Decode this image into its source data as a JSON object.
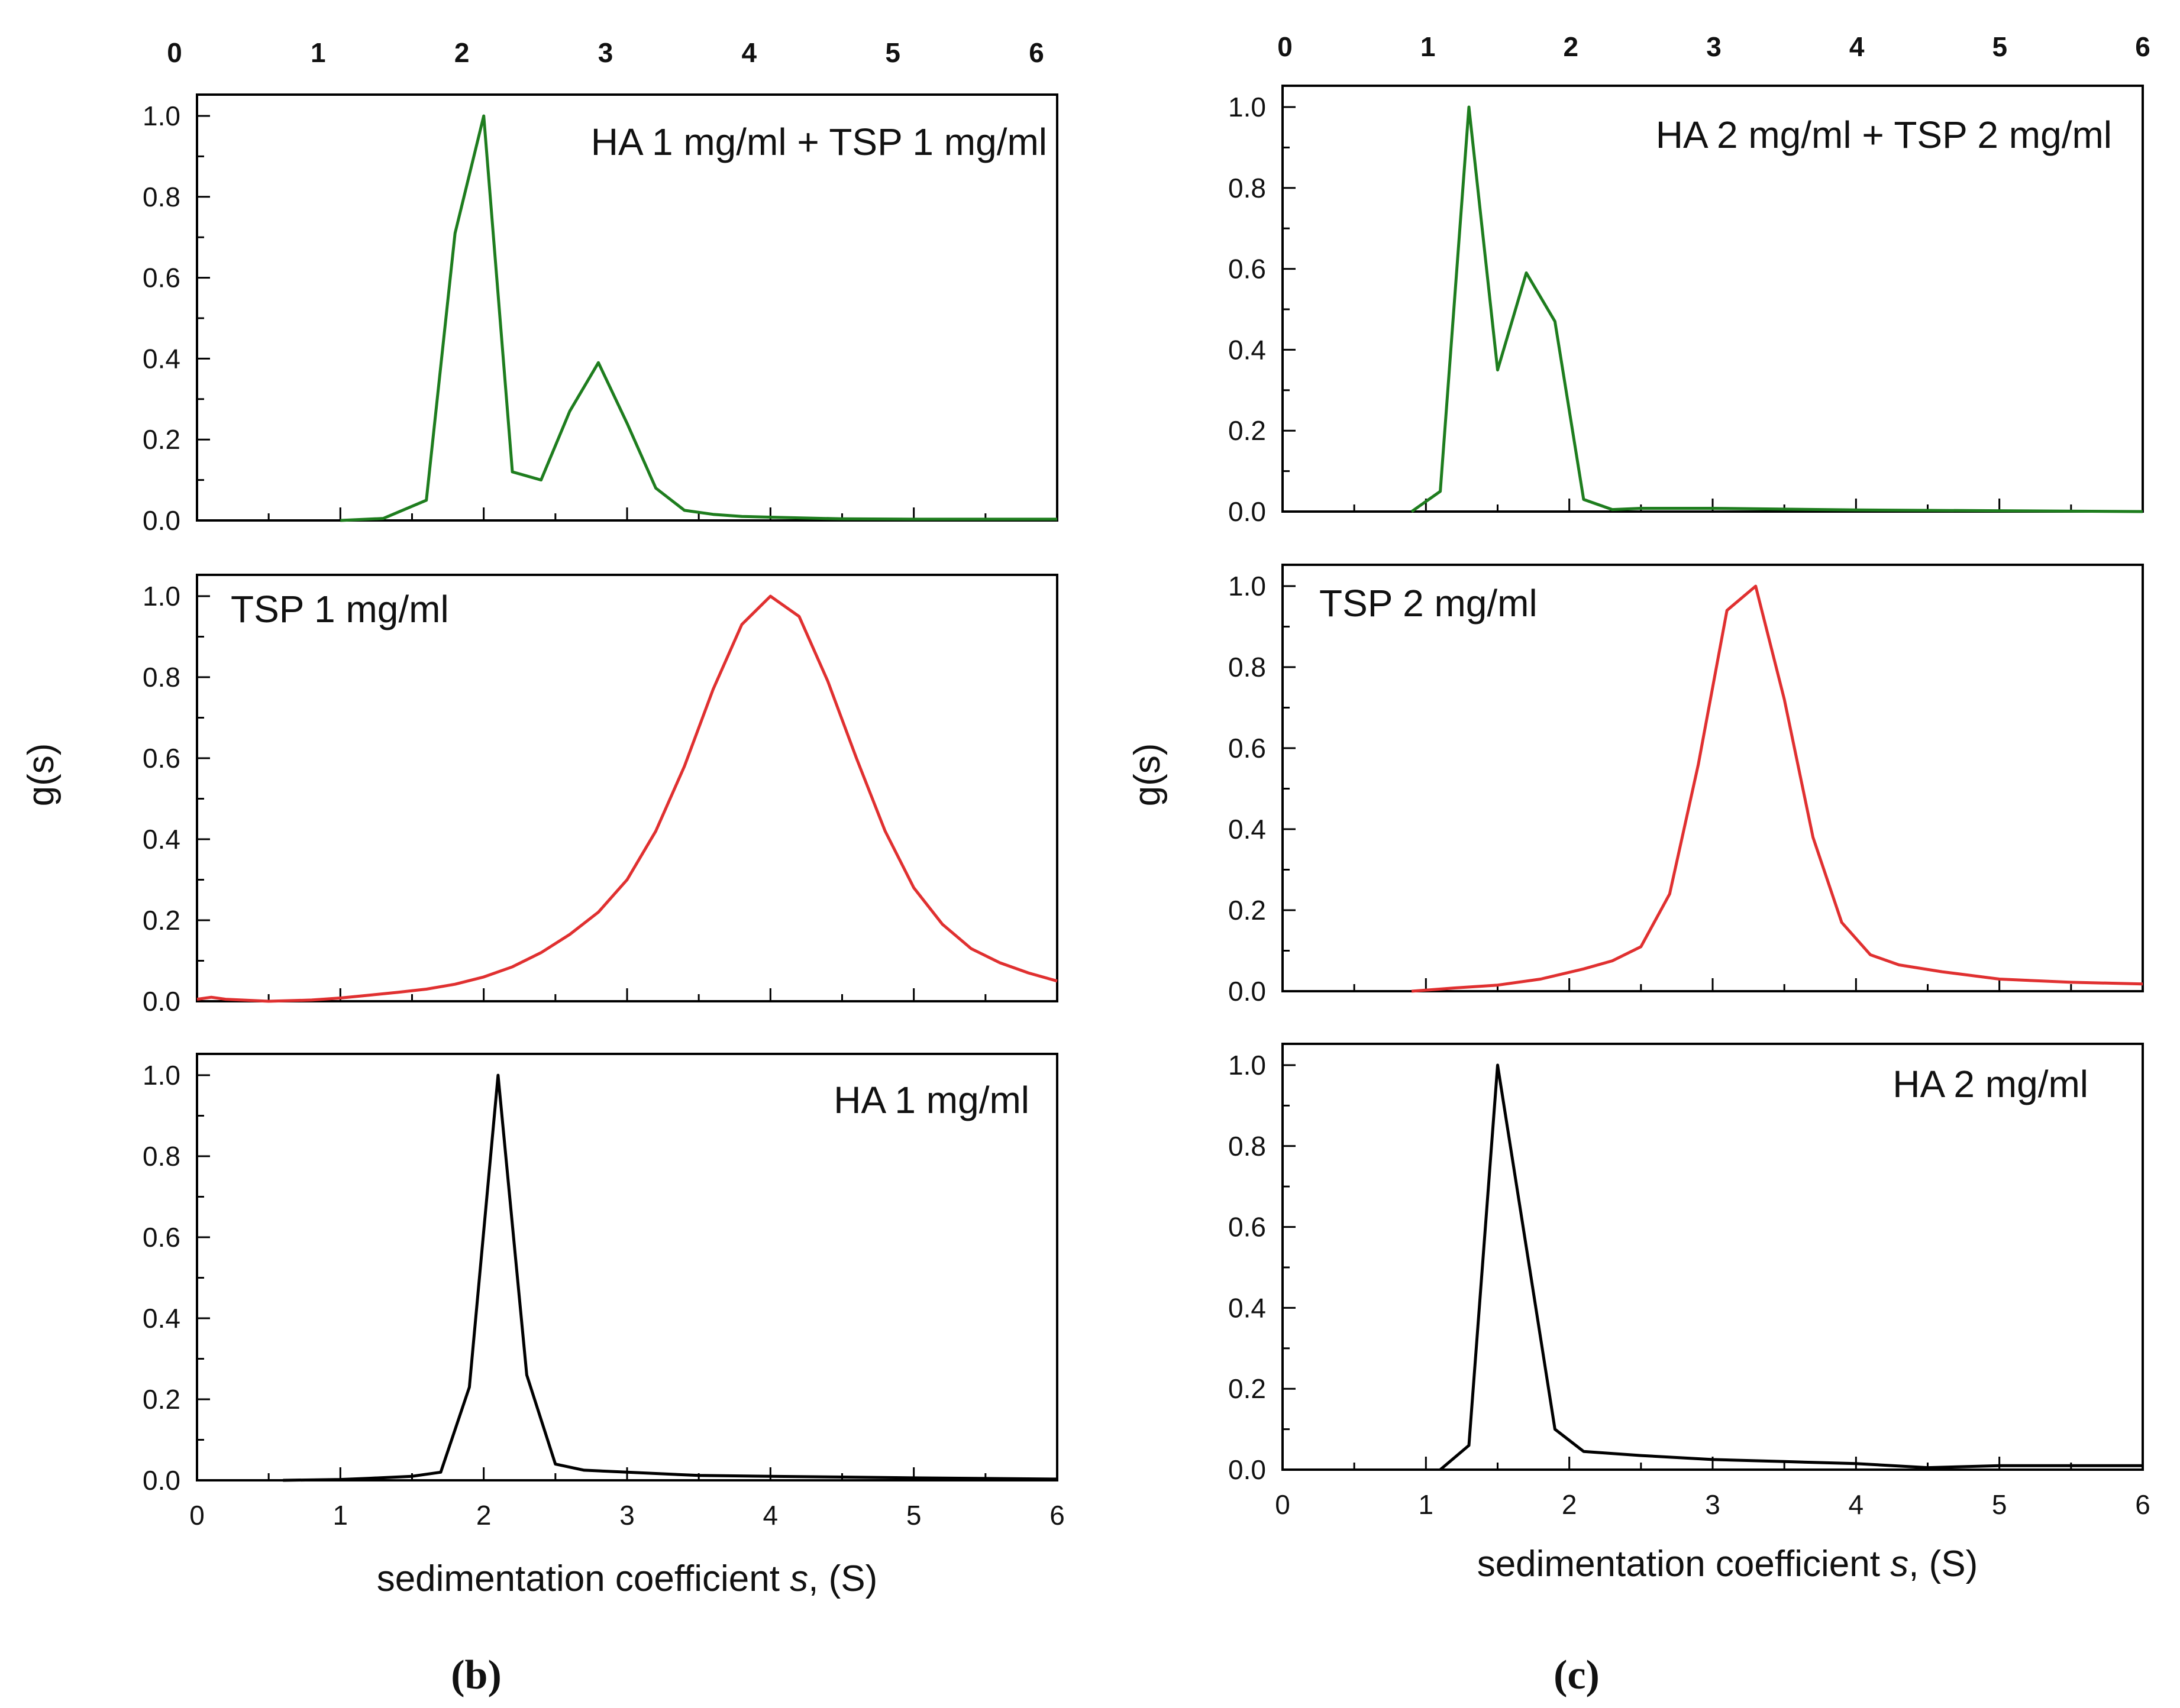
{
  "figure": {
    "panel_b_label": "(b)",
    "panel_c_label": "(c)",
    "xlabel_prefix": "sedimentation coefficient ",
    "xlabel_var": "s",
    "xlabel_suffix": ", (S)",
    "ylabel": "g(s)"
  },
  "chart_data": [
    {
      "type": "line",
      "panel": "b",
      "row": 0,
      "annotation": "HA 1 mg/ml + TSP 1 mg/ml",
      "color": "#1e7d1e",
      "xlim": [
        0,
        6
      ],
      "ylim": [
        0,
        1.0
      ],
      "x": [
        1.0,
        1.3,
        1.6,
        1.8,
        2.0,
        2.2,
        2.4,
        2.6,
        2.8,
        3.0,
        3.2,
        3.4,
        3.6,
        3.8,
        4.0,
        4.5,
        5.0,
        6.0
      ],
      "y": [
        0.0,
        0.005,
        0.05,
        0.71,
        1.0,
        0.12,
        0.1,
        0.27,
        0.39,
        0.24,
        0.08,
        0.025,
        0.015,
        0.01,
        0.008,
        0.004,
        0.003,
        0.003
      ]
    },
    {
      "type": "line",
      "panel": "b",
      "row": 1,
      "annotation": "TSP 1 mg/ml",
      "color": "#e03030",
      "xlim": [
        0,
        6
      ],
      "ylim": [
        0,
        1.0
      ],
      "x": [
        0.0,
        0.1,
        0.2,
        0.5,
        0.8,
        1.0,
        1.2,
        1.4,
        1.6,
        1.8,
        2.0,
        2.2,
        2.4,
        2.6,
        2.8,
        3.0,
        3.2,
        3.4,
        3.6,
        3.8,
        4.0,
        4.2,
        4.4,
        4.6,
        4.8,
        5.0,
        5.2,
        5.4,
        5.6,
        5.8,
        6.0
      ],
      "y": [
        0.005,
        0.01,
        0.005,
        0.0,
        0.003,
        0.008,
        0.015,
        0.022,
        0.03,
        0.042,
        0.06,
        0.085,
        0.12,
        0.165,
        0.22,
        0.3,
        0.42,
        0.58,
        0.77,
        0.93,
        1.0,
        0.95,
        0.79,
        0.6,
        0.42,
        0.28,
        0.19,
        0.13,
        0.095,
        0.07,
        0.05
      ]
    },
    {
      "type": "line",
      "panel": "b",
      "row": 2,
      "annotation": "HA 1 mg/ml",
      "color": "#000000",
      "xlim": [
        0,
        6
      ],
      "ylim": [
        0,
        1.0
      ],
      "x": [
        0.6,
        1.0,
        1.2,
        1.5,
        1.7,
        1.9,
        2.1,
        2.3,
        2.5,
        2.7,
        3.0,
        3.5,
        4.0,
        4.5,
        5.0,
        6.0
      ],
      "y": [
        0.0,
        0.002,
        0.005,
        0.01,
        0.02,
        0.23,
        1.0,
        0.26,
        0.04,
        0.025,
        0.02,
        0.012,
        0.01,
        0.008,
        0.006,
        0.003
      ]
    },
    {
      "type": "line",
      "panel": "c",
      "row": 0,
      "annotation": "HA 2 mg/ml + TSP 2 mg/ml",
      "color": "#1e7d1e",
      "xlim": [
        0,
        6
      ],
      "ylim": [
        0,
        1.0
      ],
      "x": [
        0.9,
        1.1,
        1.3,
        1.5,
        1.7,
        1.9,
        2.1,
        2.3,
        2.5,
        3.0,
        3.5,
        4.0,
        5.0,
        6.0
      ],
      "y": [
        0.0,
        0.05,
        1.0,
        0.35,
        0.59,
        0.47,
        0.03,
        0.005,
        0.008,
        0.008,
        0.006,
        0.004,
        0.002,
        0.0
      ]
    },
    {
      "type": "line",
      "panel": "c",
      "row": 1,
      "annotation": "TSP 2 mg/ml",
      "color": "#e03030",
      "xlim": [
        0,
        6
      ],
      "ylim": [
        0,
        1.0
      ],
      "x": [
        0.9,
        1.2,
        1.5,
        1.8,
        2.1,
        2.3,
        2.5,
        2.7,
        2.9,
        3.1,
        3.3,
        3.5,
        3.7,
        3.9,
        4.1,
        4.3,
        4.6,
        5.0,
        5.5,
        6.0
      ],
      "y": [
        0.0,
        0.008,
        0.015,
        0.03,
        0.055,
        0.075,
        0.11,
        0.24,
        0.56,
        0.94,
        1.0,
        0.72,
        0.38,
        0.17,
        0.09,
        0.065,
        0.048,
        0.03,
        0.022,
        0.018
      ]
    },
    {
      "type": "line",
      "panel": "c",
      "row": 2,
      "annotation": "HA 2 mg/ml",
      "color": "#000000",
      "xlim": [
        0,
        6
      ],
      "ylim": [
        0,
        1.0
      ],
      "x": [
        1.1,
        1.3,
        1.5,
        1.7,
        1.9,
        2.1,
        2.5,
        3.0,
        3.5,
        4.0,
        4.5,
        5.0,
        6.0
      ],
      "y": [
        0.0,
        0.06,
        1.0,
        0.55,
        0.1,
        0.045,
        0.035,
        0.025,
        0.02,
        0.015,
        0.005,
        0.01,
        0.01
      ]
    }
  ],
  "axes": {
    "y_ticks": [
      "0.0",
      "0.2",
      "0.4",
      "0.6",
      "0.8",
      "1.0"
    ],
    "x_ticks": [
      "0",
      "1",
      "2",
      "3",
      "4",
      "5",
      "6"
    ]
  }
}
